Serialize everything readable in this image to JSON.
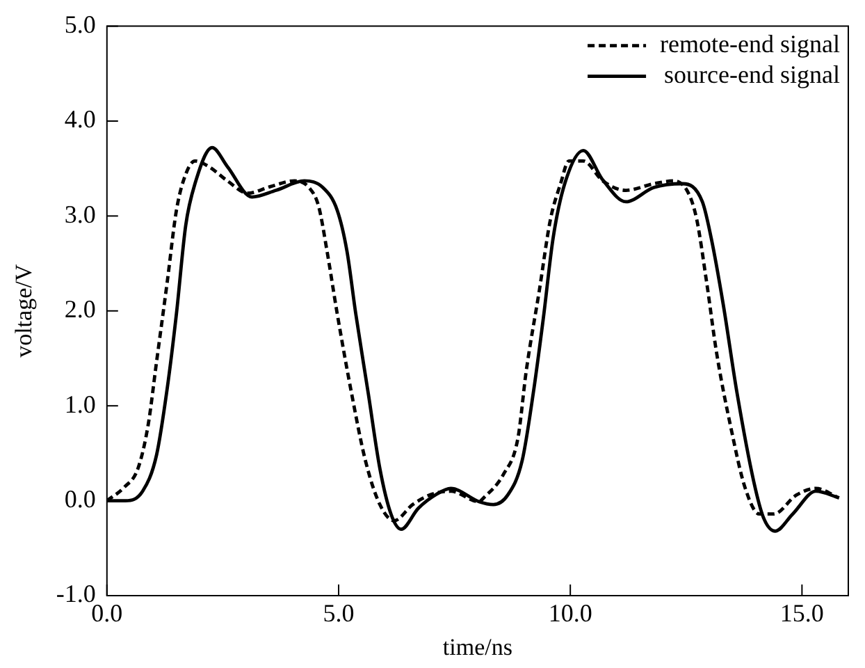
{
  "chart_data": {
    "type": "line",
    "xlabel": "time/ns",
    "ylabel": "voltage/V",
    "xlim": [
      0,
      16
    ],
    "xticks": [
      {
        "value": 0,
        "label": "0.0"
      },
      {
        "value": 5,
        "label": "5.0"
      },
      {
        "value": 10,
        "label": "10.0"
      },
      {
        "value": 15,
        "label": "15.0"
      }
    ],
    "ylim": [
      -1,
      5
    ],
    "yticks": [
      {
        "value": -1,
        "label": "-1.0"
      },
      {
        "value": 0,
        "label": "0.0"
      },
      {
        "value": 1,
        "label": "1.0"
      },
      {
        "value": 2,
        "label": "2.0"
      },
      {
        "value": 3,
        "label": "3.0"
      },
      {
        "value": 4,
        "label": "4.0"
      },
      {
        "value": 5,
        "label": "5.0"
      }
    ],
    "grid": false,
    "legend": "top right",
    "marker": "none",
    "series": [
      {
        "name": "remote-end signal",
        "color": "#000000",
        "line_style": "dashed",
        "x": [
          0,
          0.37,
          0.67,
          0.89,
          1.07,
          1.3,
          1.5,
          1.7,
          1.9,
          2.2,
          2.6,
          3.04,
          3.53,
          4.05,
          4.36,
          4.57,
          4.75,
          4.97,
          5.28,
          5.58,
          5.89,
          6.2,
          6.6,
          7.02,
          7.42,
          8.03,
          8.13,
          8.56,
          8.87,
          9.05,
          9.33,
          9.57,
          9.79,
          9.97,
          10.28,
          10.7,
          11.2,
          11.8,
          12.24,
          12.55,
          12.73,
          12.94,
          13.16,
          13.47,
          13.77,
          14.08,
          14.39,
          14.88,
          15.3,
          15.8
        ],
        "values": [
          0,
          0.14,
          0.34,
          0.8,
          1.46,
          2.3,
          3.06,
          3.44,
          3.58,
          3.52,
          3.37,
          3.24,
          3.31,
          3.37,
          3.3,
          3.1,
          2.63,
          1.97,
          1.13,
          0.42,
          -0.04,
          -0.21,
          -0.04,
          0.07,
          0.1,
          -0.01,
          0.03,
          0.28,
          0.66,
          1.37,
          2.21,
          2.96,
          3.34,
          3.58,
          3.58,
          3.37,
          3.27,
          3.34,
          3.37,
          3.24,
          2.96,
          2.31,
          1.55,
          0.76,
          0.14,
          -0.14,
          -0.14,
          0.06,
          0.13,
          0.03
        ]
      },
      {
        "name": "source-end signal",
        "color": "#000000",
        "line_style": "solid",
        "x": [
          0,
          0.4,
          0.77,
          1.07,
          1.3,
          1.5,
          1.7,
          1.9,
          2.27,
          2.6,
          3.13,
          3.65,
          4.26,
          4.66,
          4.97,
          5.18,
          5.37,
          5.64,
          5.89,
          6.13,
          6.35,
          6.72,
          7.12,
          7.42,
          8.03,
          8.34,
          8.65,
          8.96,
          9.2,
          9.42,
          9.63,
          9.88,
          10.28,
          10.7,
          11.2,
          11.8,
          12.42,
          12.85,
          13.04,
          13.3,
          13.6,
          13.96,
          14.17,
          14.42,
          14.8,
          15.3,
          15.8
        ],
        "values": [
          0,
          0,
          0.1,
          0.48,
          1.18,
          1.97,
          2.9,
          3.34,
          3.72,
          3.52,
          3.2,
          3.27,
          3.37,
          3.3,
          3.06,
          2.63,
          1.97,
          1.13,
          0.34,
          -0.14,
          -0.3,
          -0.08,
          0.07,
          0.13,
          -0.01,
          -0.04,
          0.06,
          0.42,
          1.13,
          1.93,
          2.77,
          3.34,
          3.69,
          3.38,
          3.15,
          3.3,
          3.34,
          3.15,
          2.77,
          2.07,
          1.13,
          0.2,
          -0.18,
          -0.32,
          -0.14,
          0.1,
          0.03
        ]
      }
    ]
  }
}
